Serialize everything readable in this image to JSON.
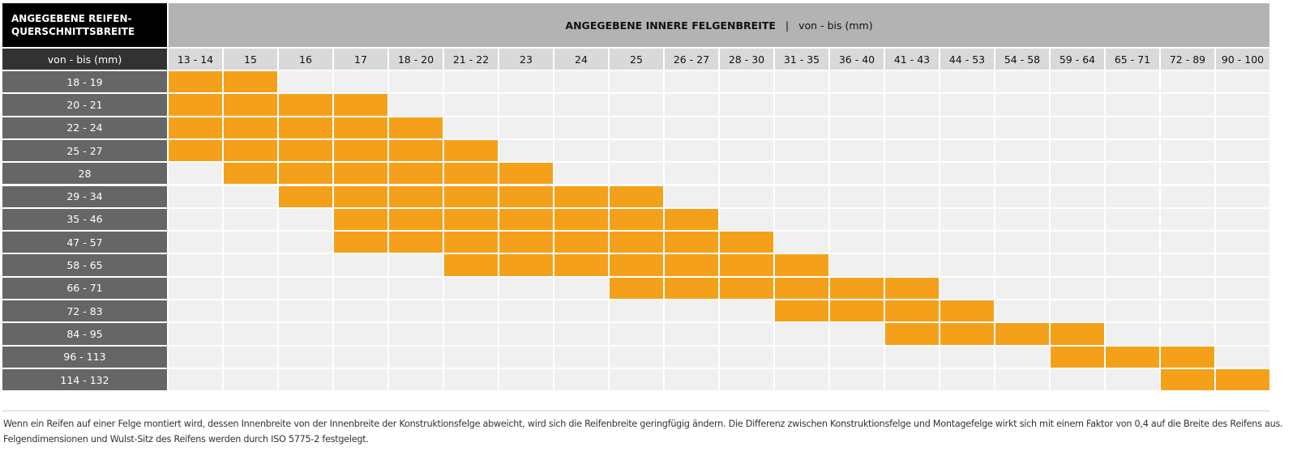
{
  "table": {
    "corner_title_lines": [
      "ANGEGEBENE REIFEN-",
      "QUERSCHNITTSBREITE"
    ],
    "corner_unit": "von - bis (mm)",
    "column_title": "ANGEGEBENE INNERE FELGENBREITE",
    "column_unit": "von - bis (mm)",
    "columns": [
      "13 - 14",
      "15",
      "16",
      "17",
      "18 - 20",
      "21 - 22",
      "23",
      "24",
      "25",
      "26 - 27",
      "28 - 30",
      "31 - 35",
      "36 - 40",
      "41 - 43",
      "44 - 53",
      "54 - 58",
      "59 - 64",
      "65 - 71",
      "72 - 89",
      "90 - 100"
    ],
    "rows": [
      {
        "label": "18 - 19",
        "fits": [
          true,
          true,
          false,
          false,
          false,
          false,
          false,
          false,
          false,
          false,
          false,
          false,
          false,
          false,
          false,
          false,
          false,
          false,
          false,
          false
        ]
      },
      {
        "label": "20 - 21",
        "fits": [
          true,
          true,
          true,
          true,
          false,
          false,
          false,
          false,
          false,
          false,
          false,
          false,
          false,
          false,
          false,
          false,
          false,
          false,
          false,
          false
        ]
      },
      {
        "label": "22 - 24",
        "fits": [
          true,
          true,
          true,
          true,
          true,
          false,
          false,
          false,
          false,
          false,
          false,
          false,
          false,
          false,
          false,
          false,
          false,
          false,
          false,
          false
        ]
      },
      {
        "label": "25 - 27",
        "fits": [
          true,
          true,
          true,
          true,
          true,
          true,
          false,
          false,
          false,
          false,
          false,
          false,
          false,
          false,
          false,
          false,
          false,
          false,
          false,
          false
        ]
      },
      {
        "label": "28",
        "fits": [
          false,
          true,
          true,
          true,
          true,
          true,
          true,
          false,
          false,
          false,
          false,
          false,
          false,
          false,
          false,
          false,
          false,
          false,
          false,
          false
        ]
      },
      {
        "label": "29 - 34",
        "fits": [
          false,
          false,
          true,
          true,
          true,
          true,
          true,
          true,
          true,
          false,
          false,
          false,
          false,
          false,
          false,
          false,
          false,
          false,
          false,
          false
        ]
      },
      {
        "label": "35 - 46",
        "fits": [
          false,
          false,
          false,
          true,
          true,
          true,
          true,
          true,
          true,
          true,
          false,
          false,
          false,
          false,
          false,
          false,
          false,
          false,
          false,
          false
        ]
      },
      {
        "label": "47 - 57",
        "fits": [
          false,
          false,
          false,
          true,
          true,
          true,
          true,
          true,
          true,
          true,
          true,
          false,
          false,
          false,
          false,
          false,
          false,
          false,
          false,
          false
        ]
      },
      {
        "label": "58 - 65",
        "fits": [
          false,
          false,
          false,
          false,
          false,
          true,
          true,
          true,
          true,
          true,
          true,
          true,
          false,
          false,
          false,
          false,
          false,
          false,
          false,
          false
        ]
      },
      {
        "label": "66 - 71",
        "fits": [
          false,
          false,
          false,
          false,
          false,
          false,
          false,
          false,
          true,
          true,
          true,
          true,
          true,
          true,
          false,
          false,
          false,
          false,
          false,
          false
        ]
      },
      {
        "label": "72 - 83",
        "fits": [
          false,
          false,
          false,
          false,
          false,
          false,
          false,
          false,
          false,
          false,
          false,
          true,
          true,
          true,
          true,
          false,
          false,
          false,
          false,
          false
        ]
      },
      {
        "label": "84 - 95",
        "fits": [
          false,
          false,
          false,
          false,
          false,
          false,
          false,
          false,
          false,
          false,
          false,
          false,
          false,
          true,
          true,
          true,
          true,
          false,
          false,
          false
        ]
      },
      {
        "label": "96 - 113",
        "fits": [
          false,
          false,
          false,
          false,
          false,
          false,
          false,
          false,
          false,
          false,
          false,
          false,
          false,
          false,
          false,
          false,
          true,
          true,
          true,
          false
        ]
      },
      {
        "label": "114 - 132",
        "fits": [
          false,
          false,
          false,
          false,
          false,
          false,
          false,
          false,
          false,
          false,
          false,
          false,
          false,
          false,
          false,
          false,
          false,
          false,
          true,
          true
        ]
      }
    ],
    "fit_color": "#f5a01a",
    "empty_color": "#f0f0f0"
  },
  "footnote": {
    "lines": [
      "Wenn ein Reifen auf einer Felge montiert wird, dessen Innenbreite von der Innenbreite der Konstruktionsfelge abweicht, wird sich die Reifenbreite geringfügig ändern. Die Differenz zwischen Konstruktionsfelge und Montagefelge wirkt sich mit einem Faktor von 0,4 auf die Breite des Reifens aus.",
      "Felgendimensionen und Wulst-Sitz des Reifens werden durch ISO 5775-2 festgelegt."
    ]
  }
}
